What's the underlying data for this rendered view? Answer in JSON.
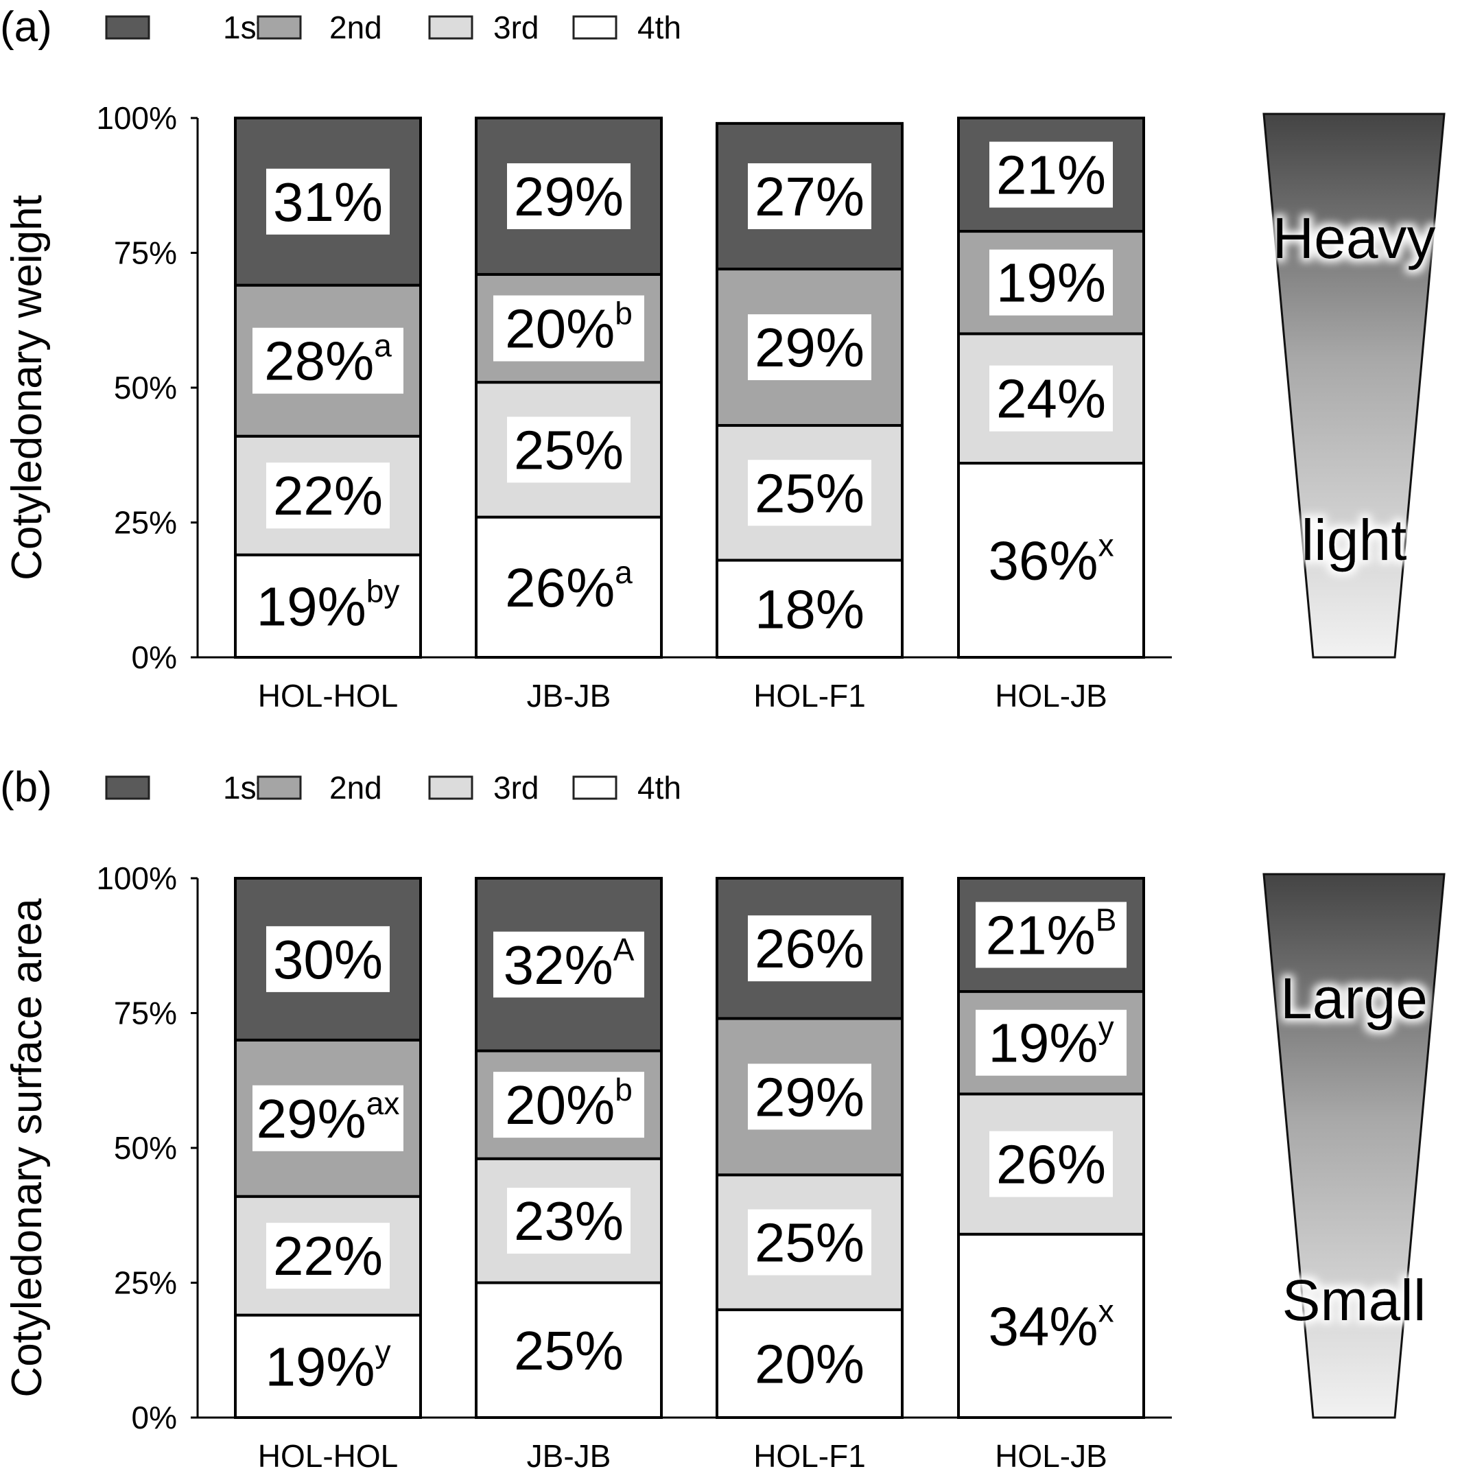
{
  "chart_data": [
    {
      "type": "bar",
      "stacked": true,
      "panel_label": "(a)",
      "ylabel": "Cotyledonary weight",
      "yticks": [
        "0%",
        "25%",
        "50%",
        "75%",
        "100%"
      ],
      "ylim": [
        0,
        100
      ],
      "categories": [
        "HOL-HOL",
        "JB-JB",
        "HOL-F1",
        "HOL-JB"
      ],
      "legend": [
        "1st",
        "2nd",
        "3rd",
        "4th"
      ],
      "legend_placement": "top-left",
      "series": [
        {
          "name": "4th",
          "color": "#ffffff",
          "values": [
            19,
            26,
            18,
            36
          ],
          "labels": [
            "19%",
            "26%",
            "18%",
            "36%"
          ],
          "sup": [
            "by",
            "a",
            "",
            "x"
          ],
          "boxed": false
        },
        {
          "name": "3rd",
          "color": "#dcdcdc",
          "values": [
            22,
            25,
            25,
            24
          ],
          "labels": [
            "22%",
            "25%",
            "25%",
            "24%"
          ],
          "sup": [
            "",
            "",
            "",
            ""
          ],
          "boxed": true
        },
        {
          "name": "2nd",
          "color": "#a5a5a5",
          "values": [
            28,
            20,
            29,
            19
          ],
          "labels": [
            "28%",
            "20%",
            "29%",
            "19%"
          ],
          "sup": [
            "a",
            "b",
            "",
            ""
          ],
          "boxed": true
        },
        {
          "name": "1st",
          "color": "#5a5a5a",
          "values": [
            31,
            29,
            27,
            21
          ],
          "labels": [
            "31%",
            "29%",
            "27%",
            "21%"
          ],
          "sup": [
            "",
            "",
            "",
            ""
          ],
          "boxed": true
        }
      ],
      "scale_words": {
        "top": "Heavy",
        "bottom": "light"
      }
    },
    {
      "type": "bar",
      "stacked": true,
      "panel_label": "(b)",
      "ylabel": "Cotyledonary surface area",
      "yticks": [
        "0%",
        "25%",
        "50%",
        "75%",
        "100%"
      ],
      "ylim": [
        0,
        100
      ],
      "categories": [
        "HOL-HOL",
        "JB-JB",
        "HOL-F1",
        "HOL-JB"
      ],
      "legend": [
        "1st",
        "2nd",
        "3rd",
        "4th"
      ],
      "legend_placement": "top-left",
      "series": [
        {
          "name": "4th",
          "color": "#ffffff",
          "values": [
            19,
            25,
            20,
            34
          ],
          "labels": [
            "19%",
            "25%",
            "20%",
            "34%"
          ],
          "sup": [
            "y",
            "",
            "",
            "x"
          ],
          "boxed": false
        },
        {
          "name": "3rd",
          "color": "#dcdcdc",
          "values": [
            22,
            23,
            25,
            26
          ],
          "labels": [
            "22%",
            "23%",
            "25%",
            "26%"
          ],
          "sup": [
            "",
            "",
            "",
            ""
          ],
          "boxed": true
        },
        {
          "name": "2nd",
          "color": "#a5a5a5",
          "values": [
            29,
            20,
            29,
            19
          ],
          "labels": [
            "29%",
            "20%",
            "29%",
            "19%"
          ],
          "sup": [
            "ax",
            "b",
            "",
            "y"
          ],
          "boxed": true
        },
        {
          "name": "1st",
          "color": "#5a5a5a",
          "values": [
            30,
            32,
            26,
            21
          ],
          "labels": [
            "30%",
            "32%",
            "26%",
            "21%"
          ],
          "sup": [
            "",
            "A",
            "",
            "B"
          ],
          "boxed": true
        }
      ],
      "scale_words": {
        "top": "Large",
        "bottom": "Small"
      }
    }
  ]
}
